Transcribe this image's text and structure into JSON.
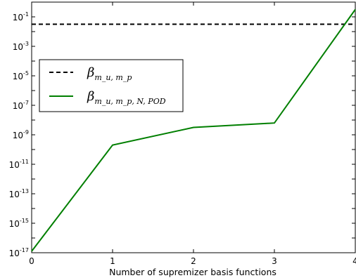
{
  "chart_data": {
    "type": "line",
    "title": "",
    "xlabel": "Number of supremizer basis functions",
    "ylabel": "",
    "xlim": [
      0,
      4
    ],
    "ylim_exponent": [
      -17,
      0
    ],
    "yscale": "log",
    "x_ticks": [
      "0",
      "1",
      "2",
      "3",
      "4"
    ],
    "y_tick_exponents": [
      "-17",
      "-15",
      "-13",
      "-11",
      "-9",
      "-7",
      "-5",
      "-3",
      "-1"
    ],
    "y_tick_base": "10",
    "grid": false,
    "legend_position": "upper-left",
    "series": [
      {
        "name_main": "β",
        "name_sub": "m_u, m_p",
        "style": "dashed",
        "color": "#000000",
        "x": [
          0,
          4
        ],
        "y_exponent": [
          -1.5,
          -1.5
        ]
      },
      {
        "name_main": "β",
        "name_sub": "m_u, m_p, N, POD",
        "style": "solid",
        "color": "#007f00",
        "x": [
          0,
          1,
          2,
          3,
          4
        ],
        "y_exponent": [
          -16.9,
          -9.7,
          -8.5,
          -8.2,
          -0.5
        ]
      }
    ]
  }
}
